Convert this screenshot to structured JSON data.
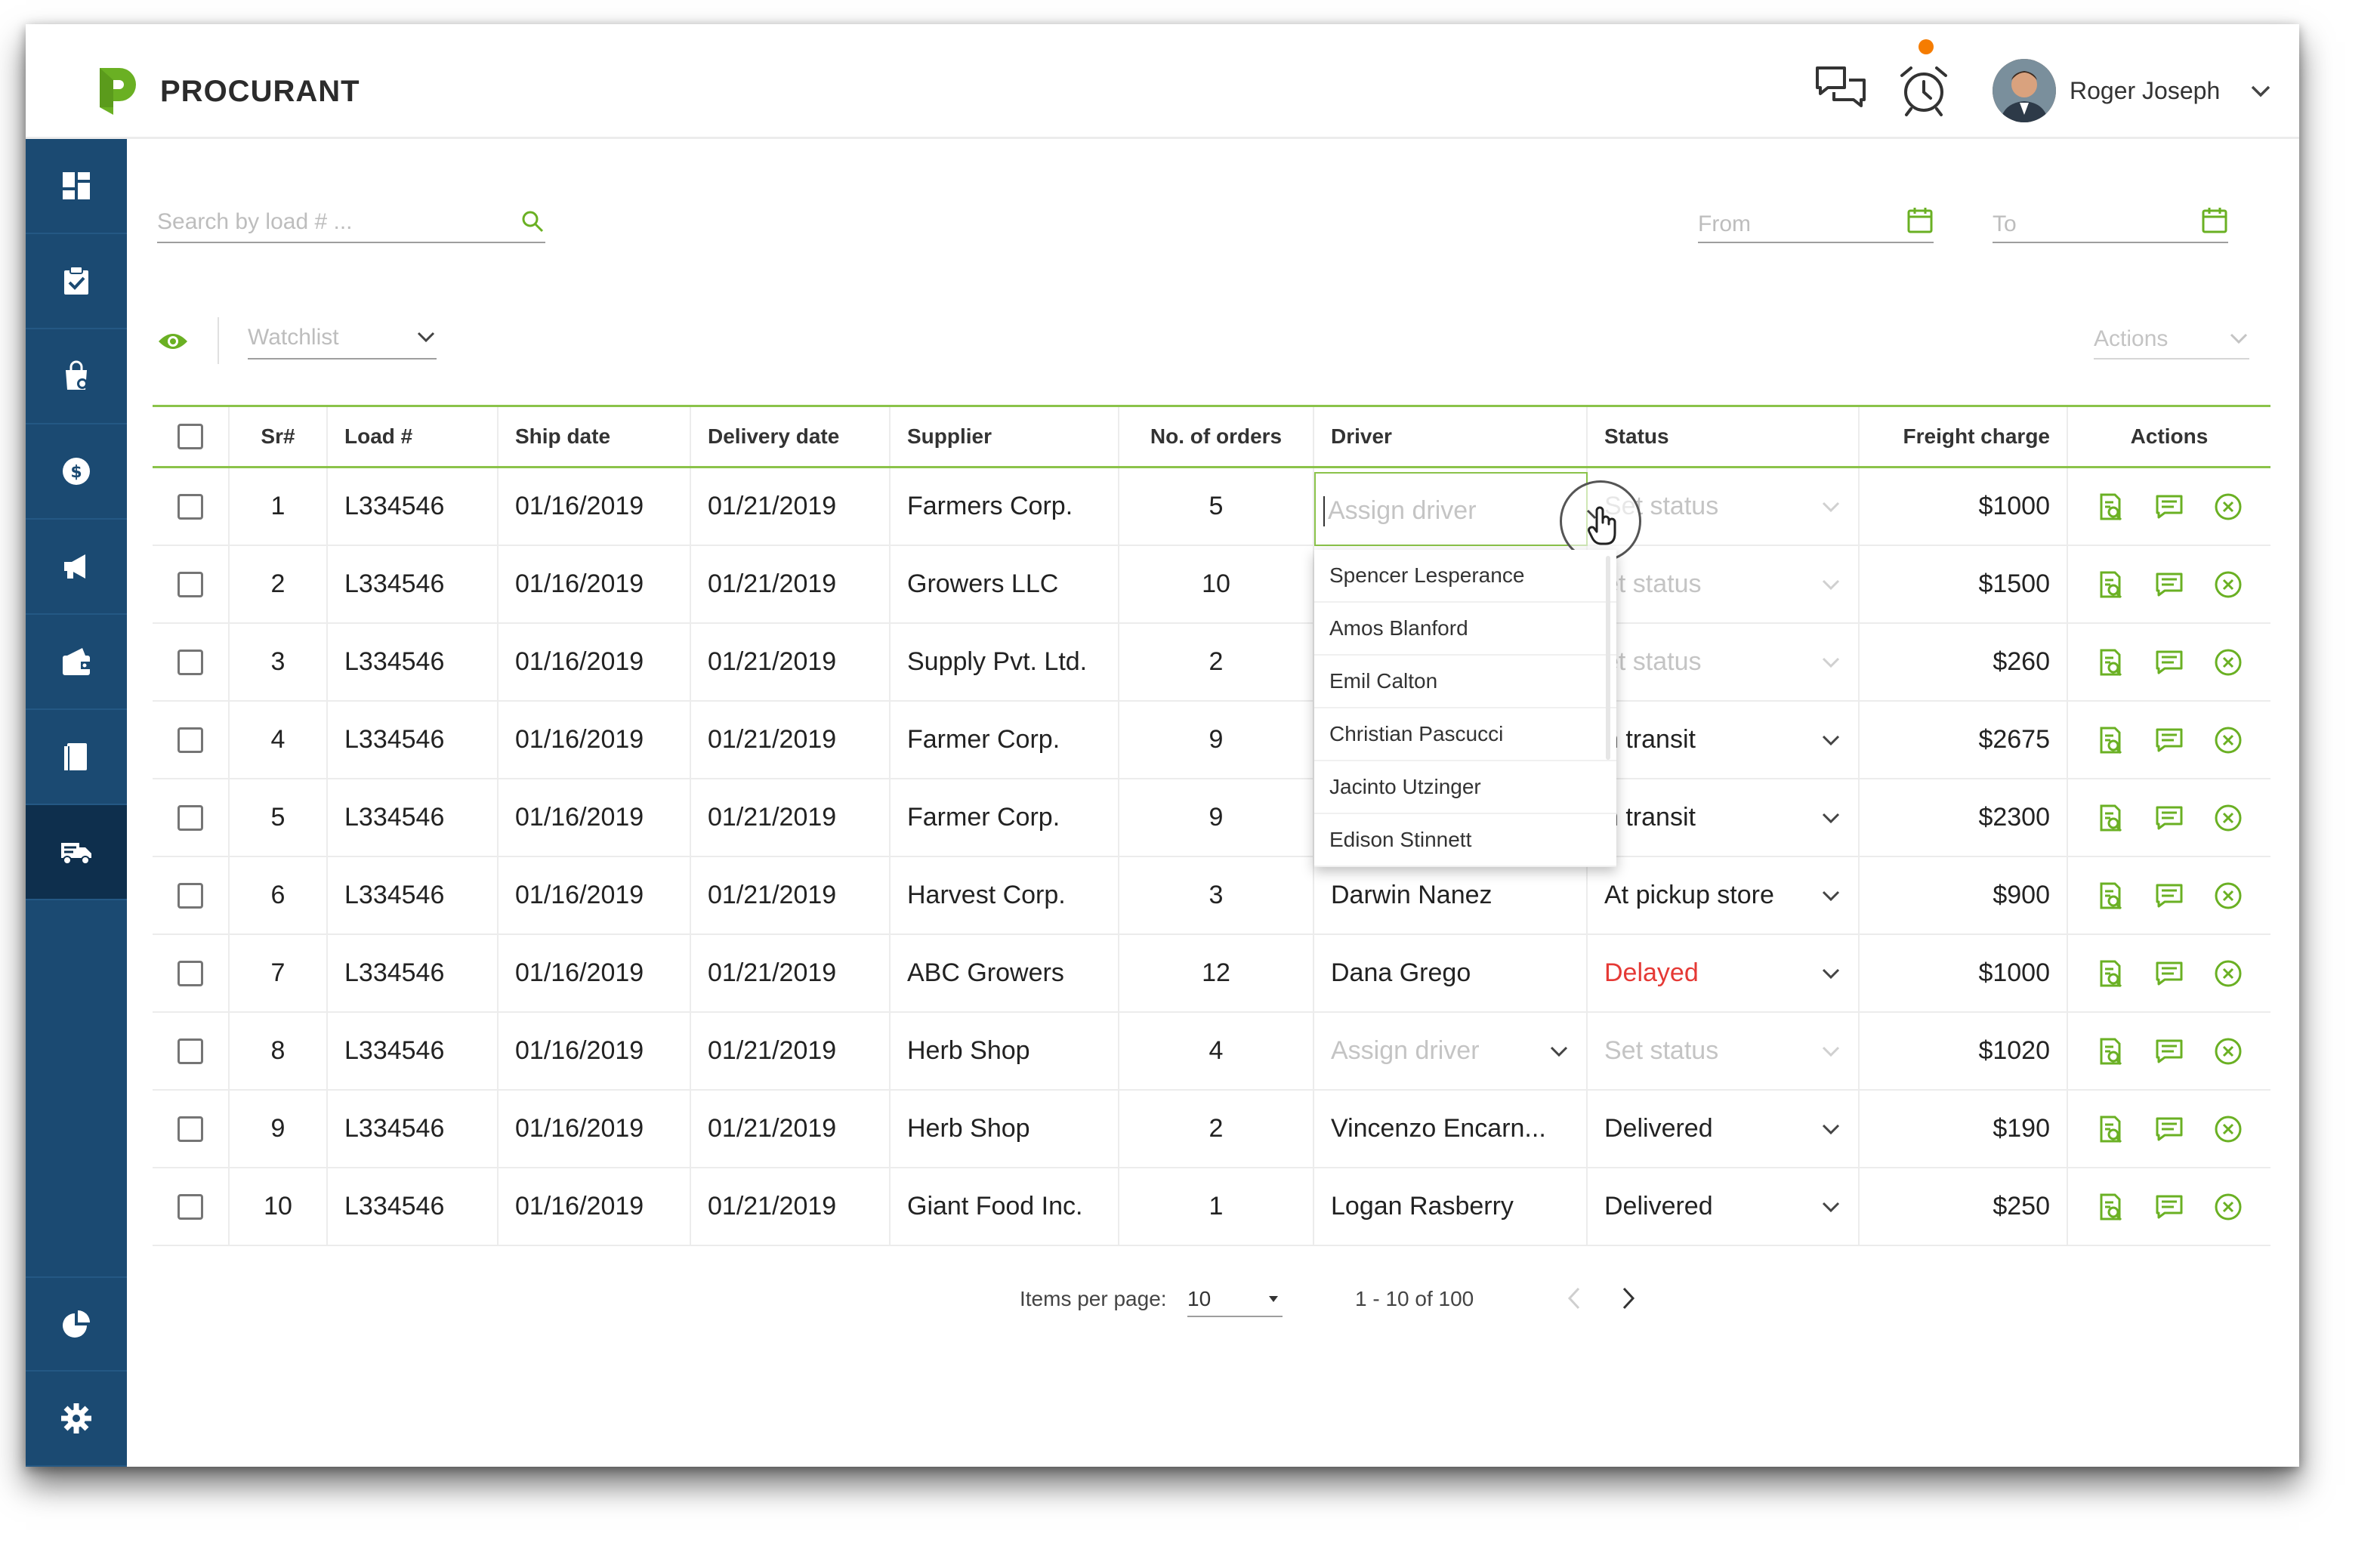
{
  "brand": {
    "name": "PROCURANT",
    "color": "#6ab023"
  },
  "header": {
    "chat_icon": "chat-bubbles-icon",
    "alarm_icon": "alarm-clock-icon",
    "alarm_badge_color": "#f57c00",
    "user_name": "Roger Joseph"
  },
  "sidebar": {
    "bg_color": "#1b4a72",
    "active_color": "#0e2f4d",
    "items": [
      {
        "icon": "dashboard-icon"
      },
      {
        "icon": "clipboard-check-icon"
      },
      {
        "icon": "bag-icon"
      },
      {
        "icon": "dollar-coin-icon"
      },
      {
        "icon": "megaphone-icon"
      },
      {
        "icon": "wallet-icon"
      },
      {
        "icon": "document-icon"
      },
      {
        "icon": "truck-icon",
        "active": true
      }
    ],
    "bottom_items": [
      {
        "icon": "pie-chart-icon"
      },
      {
        "icon": "gear-icon"
      }
    ]
  },
  "filters": {
    "search_placeholder": "Search by load # ...",
    "from_label": "From",
    "to_label": "To",
    "watchlist_label": "Watchlist",
    "actions_label": "Actions"
  },
  "table": {
    "columns": {
      "sr": "Sr#",
      "load": "Load #",
      "ship": "Ship date",
      "delivery": "Delivery date",
      "supplier": "Supplier",
      "orders": "No. of orders",
      "driver": "Driver",
      "status": "Status",
      "freight": "Freight charge",
      "actions": "Actions"
    },
    "rows": [
      {
        "sr": "1",
        "load": "L334546",
        "ship": "01/16/2019",
        "delivery": "01/21/2019",
        "supplier": "Farmers Corp.",
        "orders": "5",
        "driver": "Assign driver",
        "driver_placeholder": true,
        "status": "Set status",
        "status_placeholder": true,
        "freight": "$1000"
      },
      {
        "sr": "2",
        "load": "L334546",
        "ship": "01/16/2019",
        "delivery": "01/21/2019",
        "supplier": "Growers LLC",
        "orders": "10",
        "driver": "",
        "status": "et status",
        "status_placeholder": true,
        "freight": "$1500"
      },
      {
        "sr": "3",
        "load": "L334546",
        "ship": "01/16/2019",
        "delivery": "01/21/2019",
        "supplier": "Supply Pvt. Ltd.",
        "orders": "2",
        "driver": "",
        "status": "et status",
        "status_placeholder": true,
        "freight": "$260"
      },
      {
        "sr": "4",
        "load": "L334546",
        "ship": "01/16/2019",
        "delivery": "01/21/2019",
        "supplier": "Farmer Corp.",
        "orders": "9",
        "driver": "",
        "status": "n transit",
        "freight": "$2675"
      },
      {
        "sr": "5",
        "load": "L334546",
        "ship": "01/16/2019",
        "delivery": "01/21/2019",
        "supplier": "Farmer Corp.",
        "orders": "9",
        "driver": "",
        "status": "n transit",
        "freight": "$2300"
      },
      {
        "sr": "6",
        "load": "L334546",
        "ship": "01/16/2019",
        "delivery": "01/21/2019",
        "supplier": "Harvest Corp.",
        "orders": "3",
        "driver": "Darwin Nanez",
        "status": "At pickup store",
        "freight": "$900"
      },
      {
        "sr": "7",
        "load": "L334546",
        "ship": "01/16/2019",
        "delivery": "01/21/2019",
        "supplier": "ABC Growers",
        "orders": "12",
        "driver": "Dana Grego",
        "status": "Delayed",
        "status_alert": true,
        "freight": "$1000"
      },
      {
        "sr": "8",
        "load": "L334546",
        "ship": "01/16/2019",
        "delivery": "01/21/2019",
        "supplier": "Herb Shop",
        "orders": "4",
        "driver": "Assign driver",
        "driver_placeholder": true,
        "status": "Set status",
        "status_placeholder": true,
        "freight": "$1020"
      },
      {
        "sr": "9",
        "load": "L334546",
        "ship": "01/16/2019",
        "delivery": "01/21/2019",
        "supplier": "Herb Shop",
        "orders": "2",
        "driver": "Vincenzo Encarn...",
        "status": "Delivered",
        "freight": "$190"
      },
      {
        "sr": "10",
        "load": "L334546",
        "ship": "01/16/2019",
        "delivery": "01/21/2019",
        "supplier": "Giant Food Inc.",
        "orders": "1",
        "driver": "Logan Rasberry",
        "status": "Delivered",
        "freight": "$250"
      }
    ],
    "row_action_icons": [
      "view-document-icon",
      "message-icon",
      "cancel-circle-icon"
    ]
  },
  "driver_dropdown": {
    "placeholder": "Assign driver",
    "options": [
      "Spencer Lesperance",
      "Amos Blanford",
      "Emil Calton",
      "Christian Pascucci",
      "Jacinto Utzinger",
      "Edison Stinnett"
    ]
  },
  "pagination": {
    "items_per_page_label": "Items per page:",
    "items_per_page": "10",
    "range": "1 - 10 of 100"
  },
  "colors": {
    "accent": "#8bc34a",
    "alert": "#e53935",
    "icon_green": "#6ab023"
  }
}
